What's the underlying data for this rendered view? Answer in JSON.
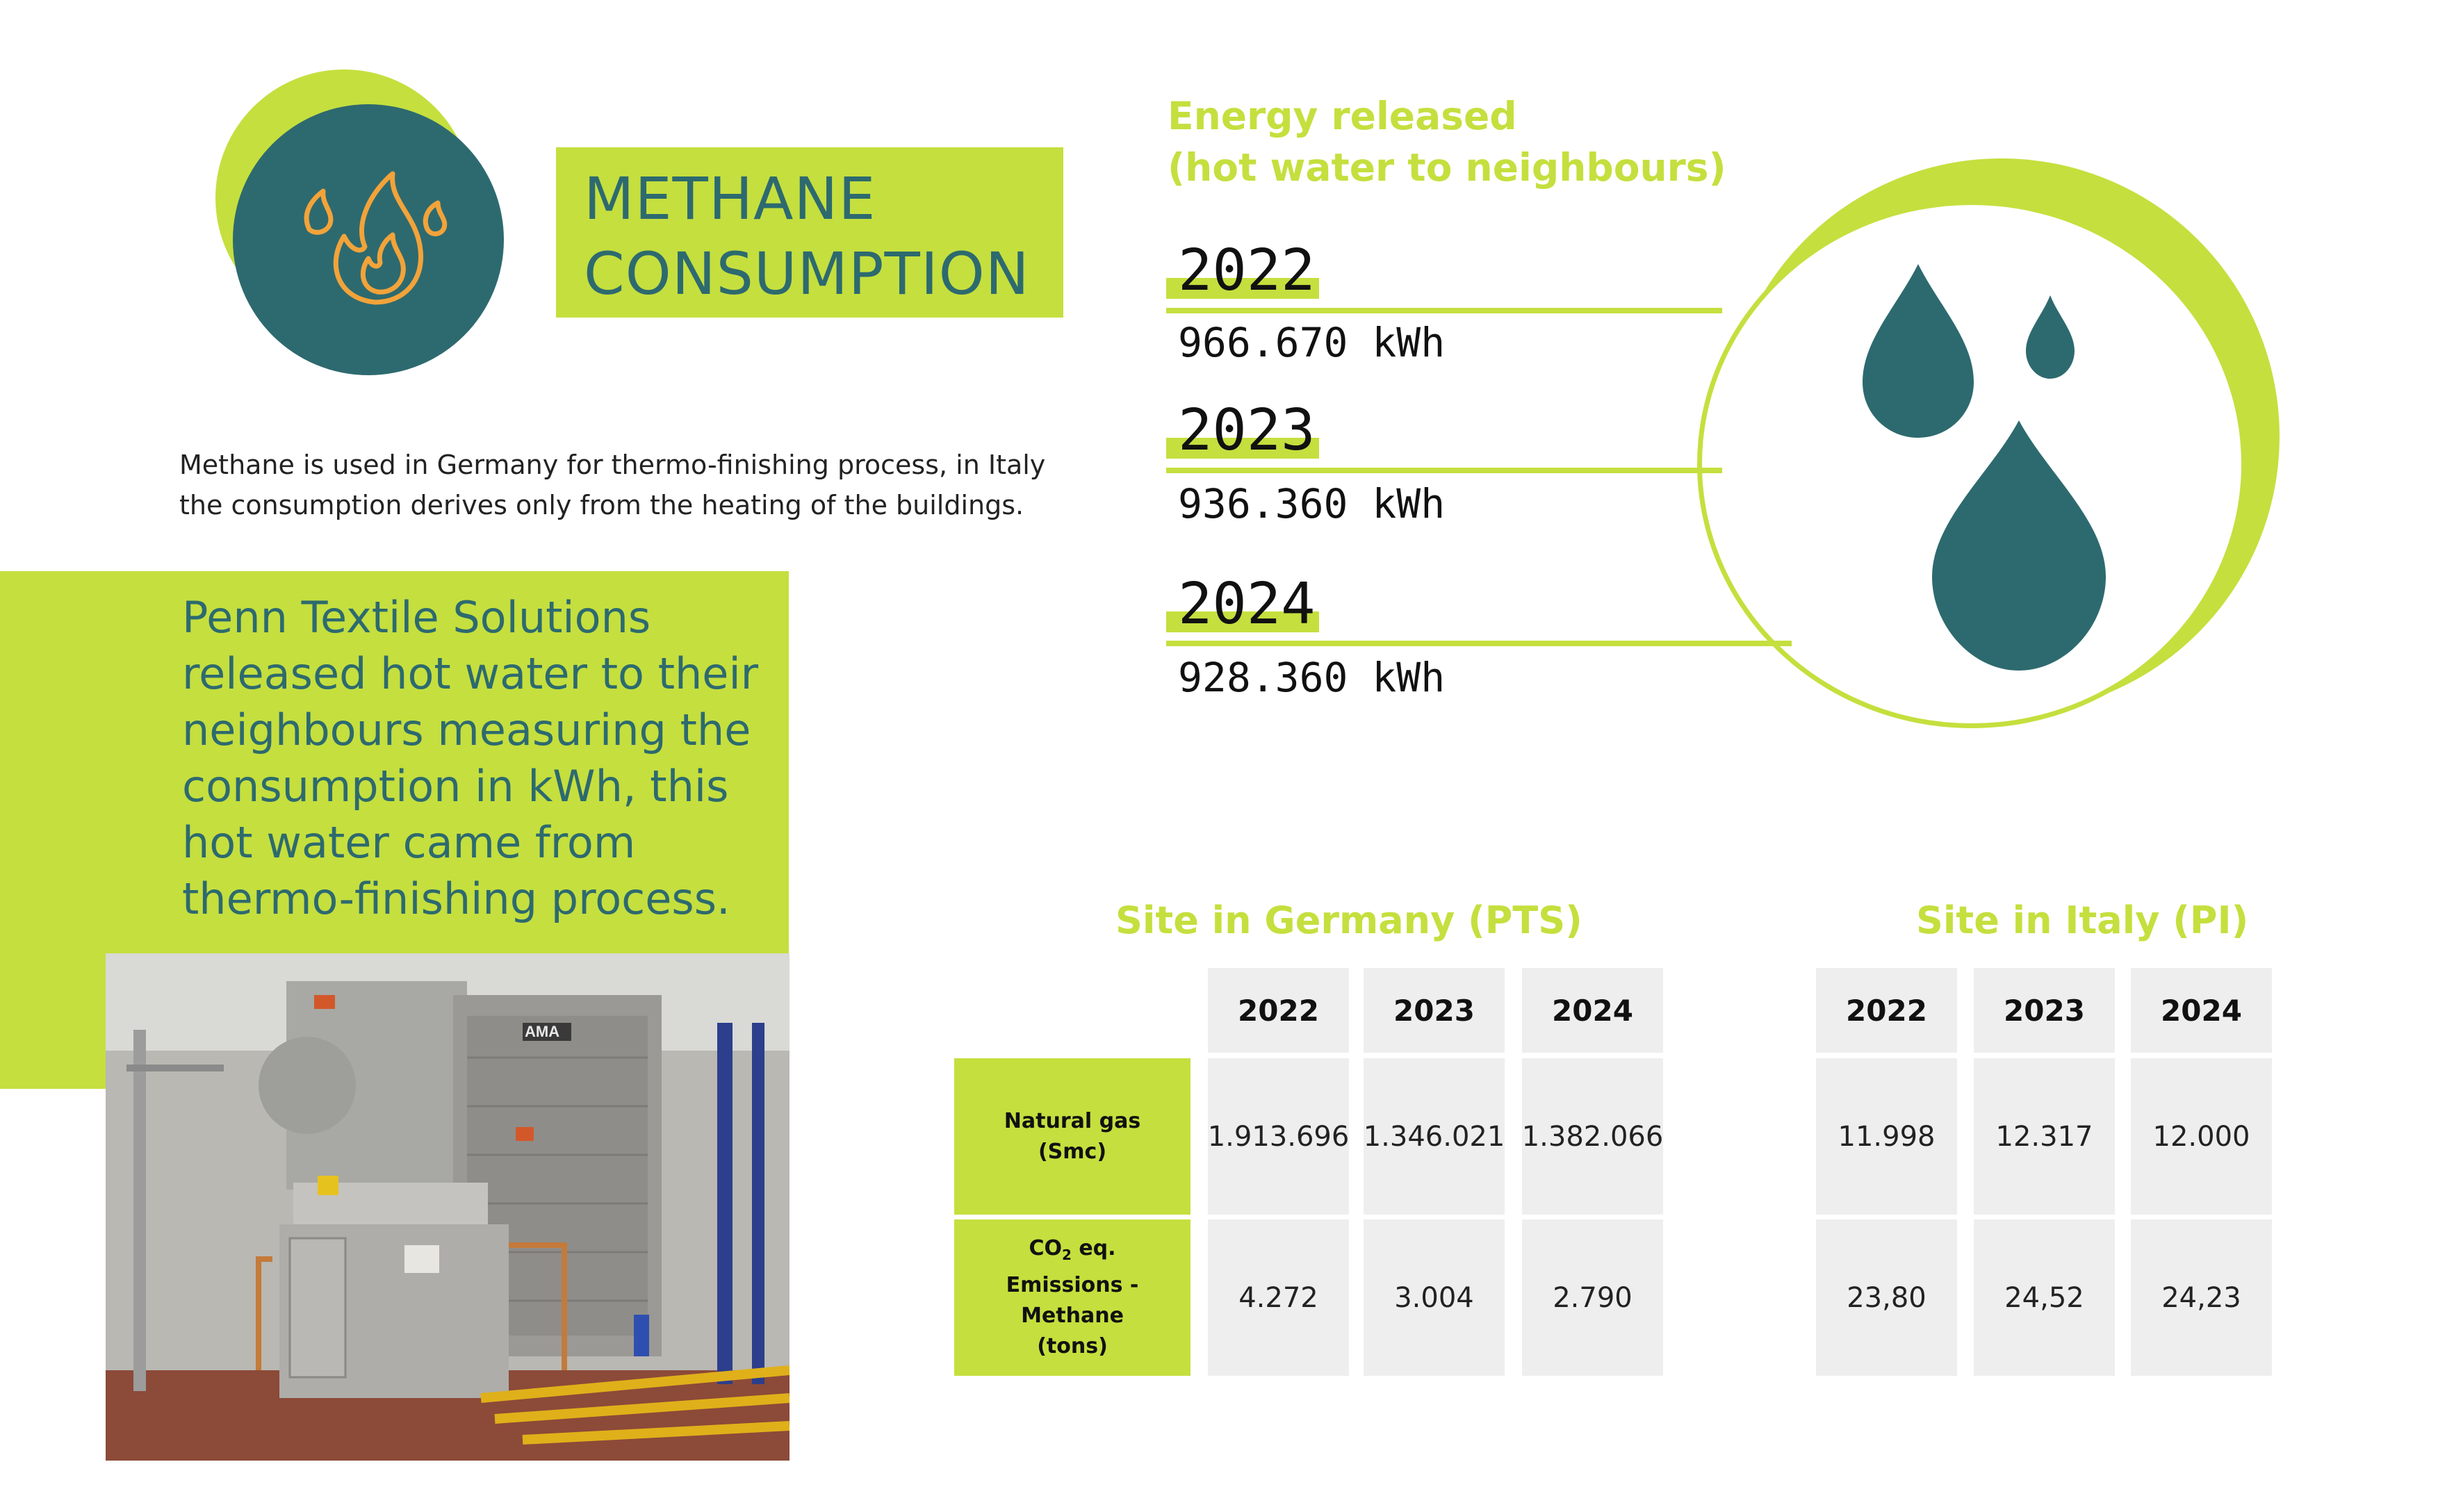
{
  "colors": {
    "accent": "#c5df3e",
    "teal": "#2d6a6f",
    "cell_bg": "#eeeeee",
    "flame": "#f2a33a"
  },
  "icons": {
    "title_icon": "flame-icon",
    "energy_icon": "water-drops-icon"
  },
  "header": {
    "title_line1": "METHANE",
    "title_line2": "CONSUMPTION"
  },
  "intro_text": "Methane is used in Germany for thermo-finishing process, in Italy the consumption derives only from the heating of the buildings.",
  "panel_text": "Penn Textile Solutions released hot water to their neighbours measuring the consumption in kWh, this hot water came from thermo-finishing process.",
  "photo": {
    "description_icon": "thermo-finishing-machine-photo",
    "label": "AMA"
  },
  "energy": {
    "title_line1": "Energy released",
    "title_line2": "(hot water to neighbours)",
    "entries": [
      {
        "year": "2022",
        "value": "966.670 kWh"
      },
      {
        "year": "2023",
        "value": "936.360 kWh"
      },
      {
        "year": "2024",
        "value": "928.360 kWh"
      }
    ]
  },
  "germany": {
    "title": "Site in Germany (PTS)",
    "years": [
      "2022",
      "2023",
      "2024"
    ],
    "rows": [
      {
        "label_line1": "Natural gas",
        "label_line2": "(Smc)",
        "values": [
          "1.913.696",
          "1.346.021",
          "1.382.066"
        ]
      },
      {
        "label_co": "CO",
        "label_sub": "2",
        "label_rest": " eq.",
        "label_line2": "Emissions - Methane",
        "label_line3": "(tons)",
        "values": [
          "4.272",
          "3.004",
          "2.790"
        ]
      }
    ]
  },
  "italy": {
    "title": "Site in Italy (PI)",
    "years": [
      "2022",
      "2023",
      "2024"
    ],
    "rows": [
      {
        "values": [
          "11.998",
          "12.317",
          "12.000"
        ]
      },
      {
        "values": [
          "23,80",
          "24,52",
          "24,23"
        ]
      }
    ]
  }
}
